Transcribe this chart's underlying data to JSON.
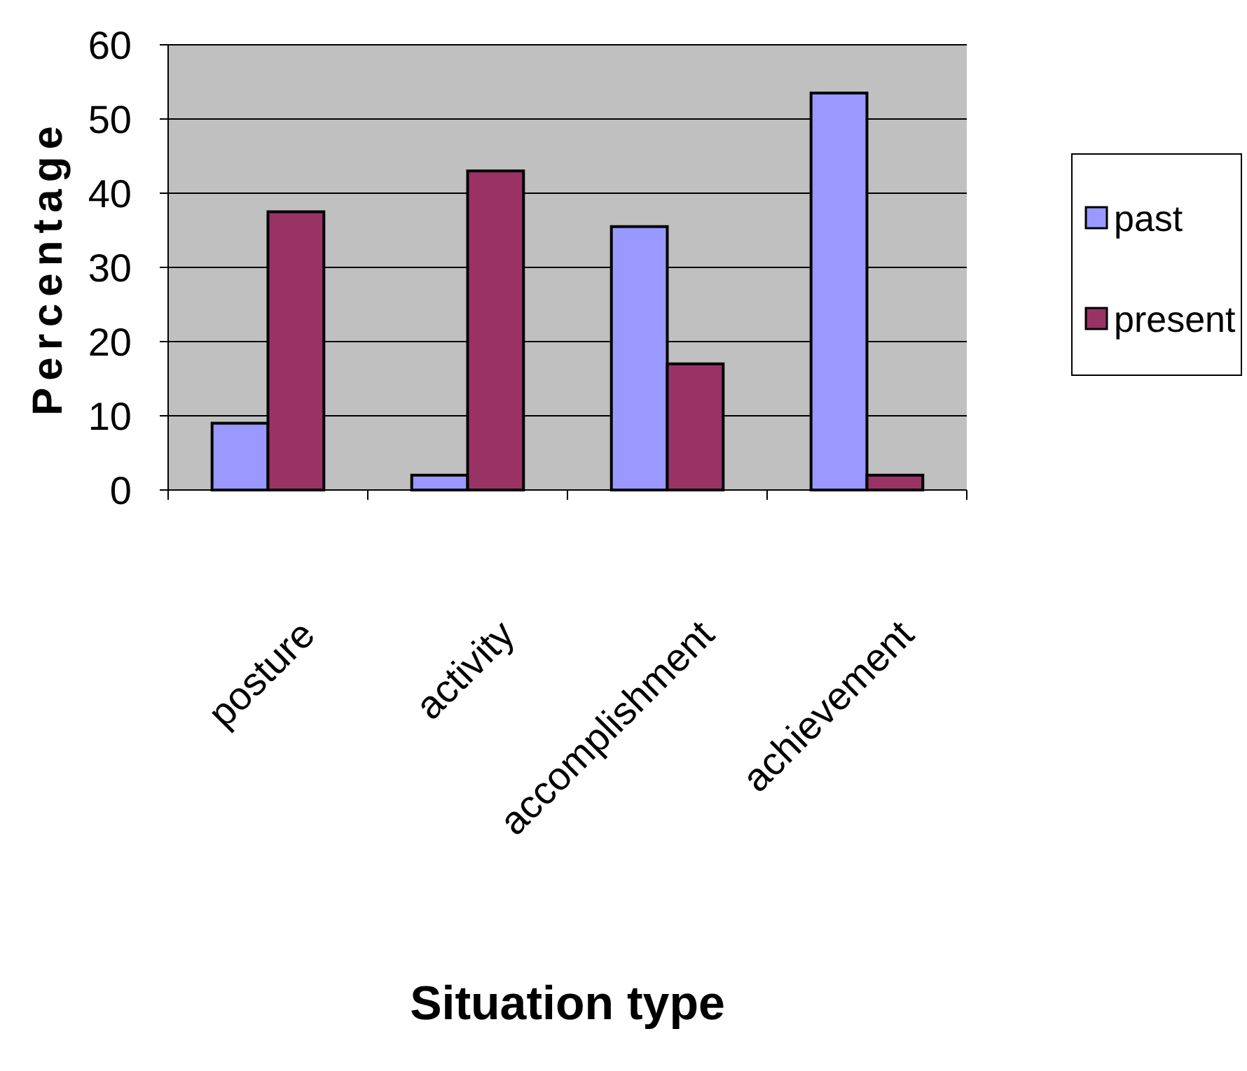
{
  "chart_data": {
    "type": "bar",
    "xlabel": "Situation type",
    "ylabel": "Percentage",
    "categories": [
      "posture",
      "activity",
      "accomplishment",
      "achievement"
    ],
    "series": [
      {
        "name": "past",
        "color": "#9999ff",
        "values": [
          9,
          2,
          35.5,
          53.5
        ]
      },
      {
        "name": "present",
        "color": "#993366",
        "values": [
          37.5,
          43,
          17,
          2
        ]
      }
    ],
    "ylim": [
      0,
      60
    ],
    "yticks": [
      0,
      10,
      20,
      30,
      40,
      50,
      60
    ],
    "grid": "y",
    "legend": "right"
  }
}
